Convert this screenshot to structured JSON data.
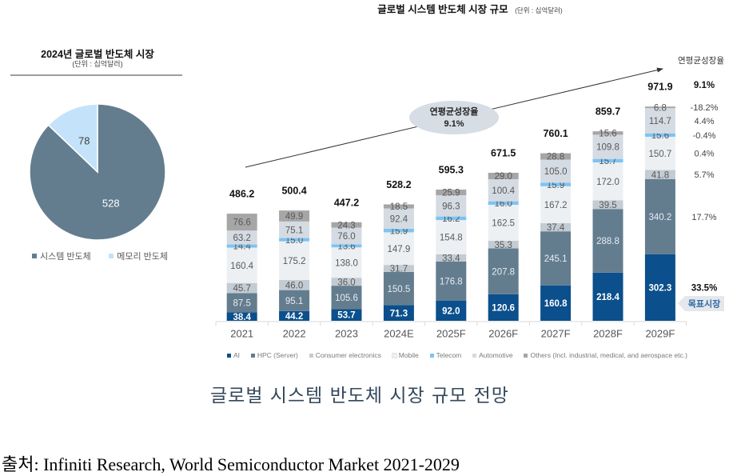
{
  "chart_data": [
    {
      "type": "pie",
      "title": "2024년 글로벌 반도체 시장",
      "subtitle": "(단위 : 십억달러)",
      "slices": [
        {
          "label": "시스템 반도체",
          "value": 528,
          "color": "#637d8f",
          "text_color": "#ffffff"
        },
        {
          "label": "메모리 반도체",
          "value": 78,
          "color": "#c4e3fa",
          "text_color": "#404040"
        }
      ],
      "legend_position": "bottom"
    },
    {
      "type": "bar",
      "stacked": true,
      "title": "글로벌 시스템 반도체 시장 규모",
      "unit": "(단위 : 십억달러)",
      "xlabel": "",
      "ylabel": "",
      "grid": false,
      "categories": [
        "2021",
        "2022",
        "2023",
        "2024E",
        "2025F",
        "2026F",
        "2027F",
        "2028F",
        "2029F"
      ],
      "totals": [
        486.2,
        500.4,
        447.2,
        528.2,
        595.3,
        671.5,
        760.1,
        859.7,
        971.9
      ],
      "series": [
        {
          "name": "AI",
          "color": "#0b4f8c",
          "label_color": "#ffffff",
          "cagr": "33.5%",
          "values": [
            38.4,
            44.2,
            53.7,
            71.3,
            92.0,
            120.6,
            160.8,
            218.4,
            302.3
          ],
          "labels": [
            "38.4",
            "44.2",
            "53.7",
            "71.3",
            "92.0",
            "120.6",
            "160.8",
            "218.4",
            "302.3"
          ]
        },
        {
          "name": "HPC (Server)",
          "color": "#637d8f",
          "label_color": "#e8ecf0",
          "cagr": "17.7%",
          "values": [
            87.5,
            95.1,
            105.6,
            150.5,
            176.8,
            207.8,
            245.1,
            288.8,
            340.2
          ],
          "labels": [
            "87.5",
            "95.1",
            "105.6",
            "150.5",
            "176.8",
            "207.8",
            "245.1",
            "288.8",
            "340.2"
          ]
        },
        {
          "name": "Consumer electronics",
          "color": "#c3cbd3",
          "label_color": "#595959",
          "cagr": "5.7%",
          "values": [
            45.7,
            46.0,
            36.0,
            31.7,
            33.4,
            35.3,
            37.4,
            39.5,
            41.8
          ],
          "labels": [
            "45.7",
            "46.0",
            "36.0",
            "31.7",
            "33.4",
            "35.3",
            "37.4",
            "39.5",
            "41.8"
          ]
        },
        {
          "name": "Mobile",
          "color": "#edf0f3",
          "label_color": "#595959",
          "cagr": "0.4%",
          "values": [
            160.4,
            175.2,
            138.0,
            147.9,
            154.8,
            162.5,
            167.2,
            172.0,
            150.7
          ],
          "labels": [
            "160.4",
            "175.2",
            "138.0",
            "147.9",
            "154.8",
            "162.5",
            "167.2",
            "172.0",
            "150.7"
          ]
        },
        {
          "name": "Telecom",
          "color": "#7cc4f4",
          "label_color": "#595959",
          "cagr": "-0.4%",
          "values": [
            14.4,
            15.0,
            13.6,
            15.9,
            16.2,
            16.0,
            15.9,
            15.7,
            15.6
          ],
          "labels": [
            "14.4",
            "15.0",
            "13.6",
            "15.9",
            "16.2",
            "16.0",
            "15.9",
            "15.7",
            "15.6"
          ]
        },
        {
          "name": "Automotive",
          "color": "#d5dbe2",
          "label_color": "#595959",
          "cagr": "4.4%",
          "values": [
            63.2,
            75.1,
            76.0,
            92.4,
            96.3,
            100.4,
            105.0,
            109.8,
            114.7
          ],
          "labels": [
            "63.2",
            "75.1",
            "76.0",
            "92.4",
            "96.3",
            "100.4",
            "105.0",
            "109.8",
            "114.7"
          ]
        },
        {
          "name": "Others (Incl. industrial, medical, and aerospace etc.)",
          "color": "#a6a6a6",
          "label_color": "#595959",
          "cagr": "-18.2%",
          "values": [
            76.6,
            49.9,
            24.3,
            18.5,
            25.9,
            29.0,
            28.8,
            15.6,
            6.8
          ],
          "labels": [
            "76.6",
            "49.9",
            "24.3",
            "18.5",
            "25.9",
            "29.0",
            "28.8",
            "15.6",
            "6.8"
          ]
        }
      ],
      "cagr_header": "연평균성장율",
      "cagr_total": "9.1%",
      "trend_annotation": {
        "label": "연평균성장율",
        "value": "9.1%"
      },
      "target_tag": "목표시장",
      "legend_position": "bottom"
    }
  ],
  "caption": "글로벌 시스템 반도체 시장 규모 전망",
  "source": "출처: Infiniti Research, World Semiconductor Market 2021-2029"
}
